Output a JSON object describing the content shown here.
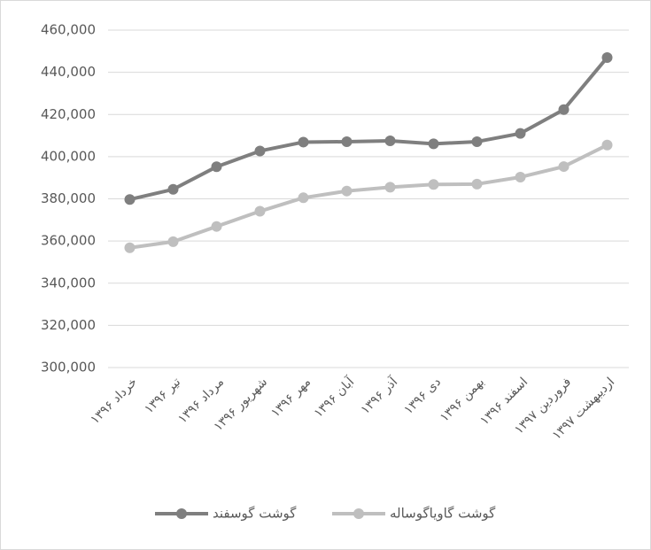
{
  "chart_data": {
    "type": "line",
    "categories": [
      "خرداد ۱۳۹۶",
      "تیر ۱۳۹۶",
      "مرداد ۱۳۹۶",
      "شهریور ۱۳۹۶",
      "مهر ۱۳۹۶",
      "آبان ۱۳۹۶",
      "آذر ۱۳۹۶",
      "دی ۱۳۹۶",
      "بهمن ۱۳۹۶",
      "اسفند ۱۳۹۶",
      "فروردین ۱۳۹۷",
      "اردیبهشت ۱۳۹۷"
    ],
    "series": [
      {
        "name": "گوشت گوسفند",
        "color": "#7f7f7f",
        "values": [
          379700,
          384500,
          395200,
          402700,
          406900,
          407100,
          407500,
          406100,
          407100,
          411000,
          422300,
          447000
        ]
      },
      {
        "name": "گوشت گاویاگوساله",
        "color": "#bfbfbf",
        "values": [
          356800,
          359700,
          366900,
          374100,
          380500,
          383700,
          385500,
          386800,
          387000,
          390300,
          395300,
          405500
        ]
      }
    ],
    "ylim": [
      300000,
      460000
    ],
    "yticks": [
      {
        "value": 300000,
        "label": "300,000"
      },
      {
        "value": 320000,
        "label": "320,000"
      },
      {
        "value": 340000,
        "label": "340,000"
      },
      {
        "value": 360000,
        "label": "360,000"
      },
      {
        "value": 380000,
        "label": "380,000"
      },
      {
        "value": 400000,
        "label": "400,000"
      },
      {
        "value": 420000,
        "label": "420,000"
      },
      {
        "value": 440000,
        "label": "440,000"
      },
      {
        "value": 460000,
        "label": "460,000"
      }
    ],
    "grid": true,
    "legend": "bottom"
  }
}
